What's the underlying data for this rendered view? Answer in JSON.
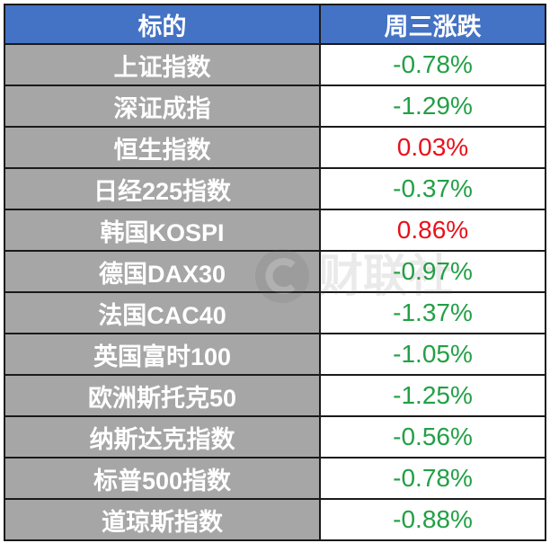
{
  "table": {
    "headers": [
      "标的",
      "周三涨跌"
    ],
    "rows": [
      {
        "name": "上证指数",
        "change": "-0.78%",
        "color": "#22a045"
      },
      {
        "name": "深证成指",
        "change": "-1.29%",
        "color": "#22a045"
      },
      {
        "name": "恒生指数",
        "change": "0.03%",
        "color": "#e8101a"
      },
      {
        "name": "日经225指数",
        "change": "-0.37%",
        "color": "#22a045"
      },
      {
        "name": "韩国KOSPI",
        "change": "0.86%",
        "color": "#e8101a"
      },
      {
        "name": "德国DAX30",
        "change": "-0.97%",
        "color": "#22a045"
      },
      {
        "name": "法国CAC40",
        "change": "-1.37%",
        "color": "#22a045"
      },
      {
        "name": "英国富时100",
        "change": "-1.05%",
        "color": "#22a045"
      },
      {
        "name": "欧洲斯托克50",
        "change": "-1.25%",
        "color": "#22a045"
      },
      {
        "name": "纳斯达克指数",
        "change": "-0.56%",
        "color": "#22a045"
      },
      {
        "name": "标普500指数",
        "change": "-0.78%",
        "color": "#22a045"
      },
      {
        "name": "道琼斯指数",
        "change": "-0.88%",
        "color": "#22a045"
      }
    ]
  },
  "colors": {
    "header_bg": "#4472c4",
    "name_bg": "#a6a6a6",
    "down": "#22a045",
    "up": "#e8101a"
  },
  "watermark": {
    "text": "财联社",
    "icon": "cls-logo-icon"
  }
}
